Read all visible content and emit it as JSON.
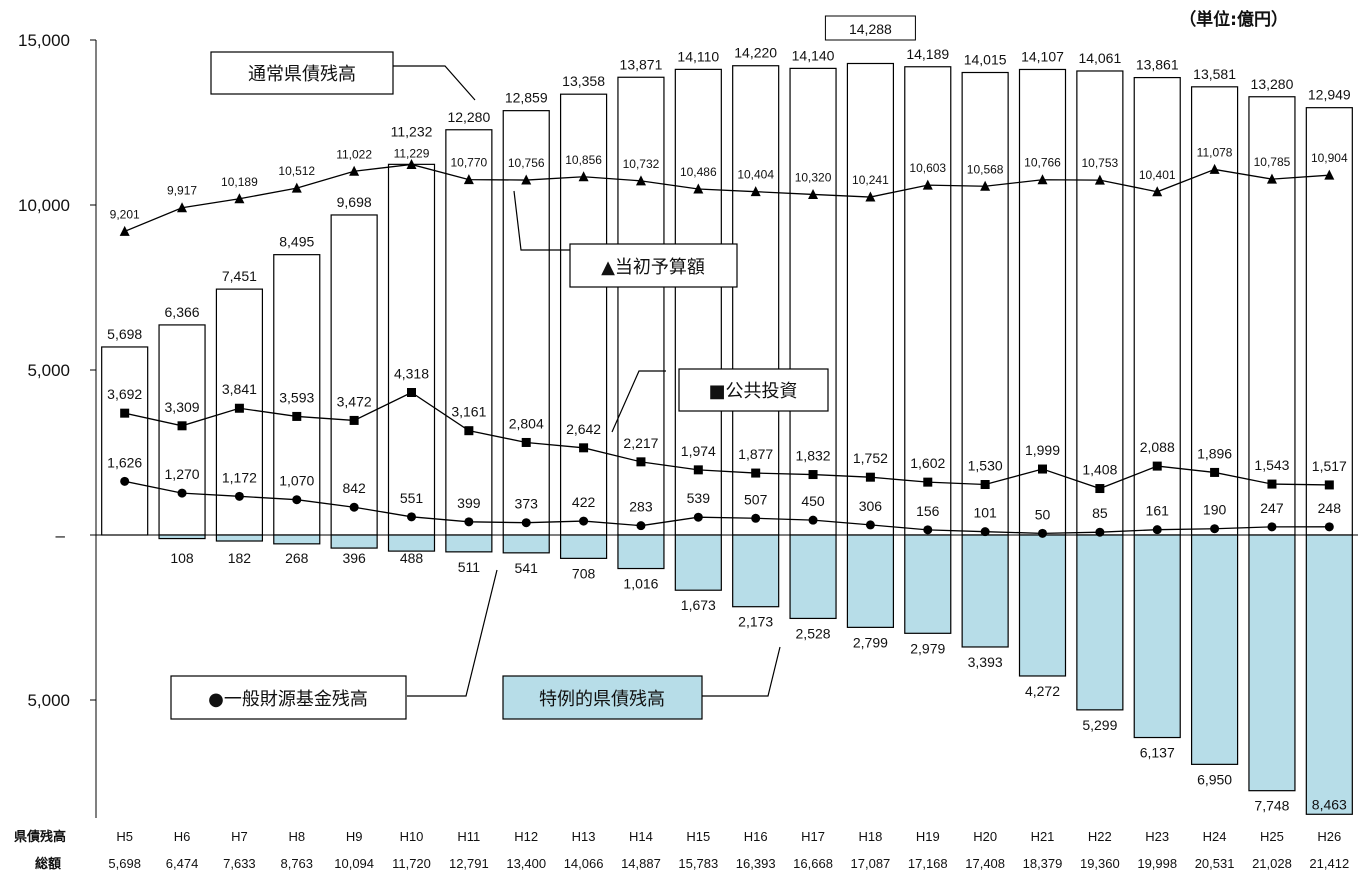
{
  "unit_label": "（単位:億円）",
  "y_ticks": [
    "15,000",
    "10,000",
    "5,000",
    "–",
    "5,000"
  ],
  "legend": {
    "regular": "通常県債残高",
    "initial_budget": "▲当初予算額",
    "public_investment": "■公共投資",
    "general_fund": "●一般財源基金残高",
    "special": "特例的県債残高"
  },
  "bottom": {
    "row1_label": "県債残高",
    "row2_label": "総額",
    "totals": [
      "5,698",
      "6,474",
      "7,633",
      "8,763",
      "10,094",
      "11,720",
      "12,791",
      "13,400",
      "14,066",
      "14,887",
      "15,783",
      "16,393",
      "16,668",
      "17,087",
      "17,168",
      "17,408",
      "18,379",
      "19,360",
      "19,998",
      "20,531",
      "21,028",
      "21,412"
    ]
  },
  "colors": {
    "special_fill": "#b7dde8",
    "line": "#000000",
    "bar_stroke": "#000000"
  },
  "chart_data": {
    "type": "bar",
    "categories": [
      "H5",
      "H6",
      "H7",
      "H8",
      "H9",
      "H10",
      "H11",
      "H12",
      "H13",
      "H14",
      "H15",
      "H16",
      "H17",
      "H18",
      "H19",
      "H20",
      "H21",
      "H22",
      "H23",
      "H24",
      "H25",
      "H26"
    ],
    "ylim": [
      -8500,
      15000
    ],
    "series": [
      {
        "name": "通常県債残高",
        "kind": "bar-up",
        "values": [
          5698,
          6366,
          7451,
          8495,
          9698,
          11232,
          12280,
          12859,
          13358,
          13871,
          14110,
          14220,
          14140,
          14288,
          14189,
          14015,
          14107,
          14061,
          13861,
          13581,
          13280,
          12949
        ]
      },
      {
        "name": "特例的県債残高",
        "kind": "bar-down",
        "values": [
          0,
          108,
          182,
          268,
          396,
          488,
          511,
          541,
          708,
          1016,
          1673,
          2173,
          2528,
          2799,
          2979,
          3393,
          4272,
          5299,
          6137,
          6950,
          7748,
          8463
        ]
      },
      {
        "name": "▲当初予算額",
        "kind": "line-triangle",
        "values": [
          9201,
          9917,
          10189,
          10512,
          11022,
          11229,
          10770,
          10756,
          10856,
          10732,
          10486,
          10404,
          10320,
          10241,
          10603,
          10568,
          10766,
          10753,
          10401,
          11078,
          10785,
          10904
        ]
      },
      {
        "name": "■公共投資",
        "kind": "line-square",
        "values": [
          3692,
          3309,
          3841,
          3593,
          3472,
          4318,
          3161,
          2804,
          2642,
          2217,
          1974,
          1877,
          1832,
          1752,
          1602,
          1530,
          1999,
          1408,
          2088,
          1896,
          1543,
          1517
        ]
      },
      {
        "name": "●一般財源基金残高",
        "kind": "line-circle",
        "values": [
          1626,
          1270,
          1172,
          1070,
          842,
          551,
          399,
          373,
          422,
          283,
          539,
          507,
          450,
          306,
          156,
          101,
          50,
          85,
          161,
          190,
          247,
          248
        ]
      }
    ],
    "labels": {
      "regular": [
        "5,698",
        "6,366",
        "7,451",
        "8,495",
        "9,698",
        "11,232",
        "12,280",
        "12,859",
        "13,358",
        "13,871",
        "14,110",
        "14,220",
        "14,140",
        "14,288",
        "14,189",
        "14,015",
        "14,107",
        "14,061",
        "13,861",
        "13,581",
        "13,280",
        "12,949"
      ],
      "special": [
        "",
        "108",
        "182",
        "268",
        "396",
        "488",
        "511",
        "541",
        "708",
        "1,016",
        "1,673",
        "2,173",
        "2,528",
        "2,799",
        "2,979",
        "3,393",
        "4,272",
        "5,299",
        "6,137",
        "6,950",
        "7,748",
        "8,463"
      ],
      "budget": [
        "9,201",
        "9,917",
        "10,189",
        "10,512",
        "11,022",
        "11,229",
        "10,770",
        "10,756",
        "10,856",
        "10,732",
        "10,486",
        "10,404",
        "10,320",
        "10,241",
        "10,603",
        "10,568",
        "10,766",
        "10,753",
        "10,401",
        "11,078",
        "10,785",
        "10,904"
      ],
      "public": [
        "3,692",
        "3,309",
        "3,841",
        "3,593",
        "3,472",
        "4,318",
        "3,161",
        "2,804",
        "2,642",
        "2,217",
        "1,974",
        "1,877",
        "1,832",
        "1,752",
        "1,602",
        "1,530",
        "1,999",
        "1,408",
        "2,088",
        "1,896",
        "1,543",
        "1,517"
      ],
      "fund": [
        "1,626",
        "1,270",
        "1,172",
        "1,070",
        "842",
        "551",
        "399",
        "373",
        "422",
        "283",
        "539",
        "507",
        "450",
        "306",
        "156",
        "101",
        "50",
        "85",
        "161",
        "190",
        "247",
        "248"
      ]
    }
  }
}
